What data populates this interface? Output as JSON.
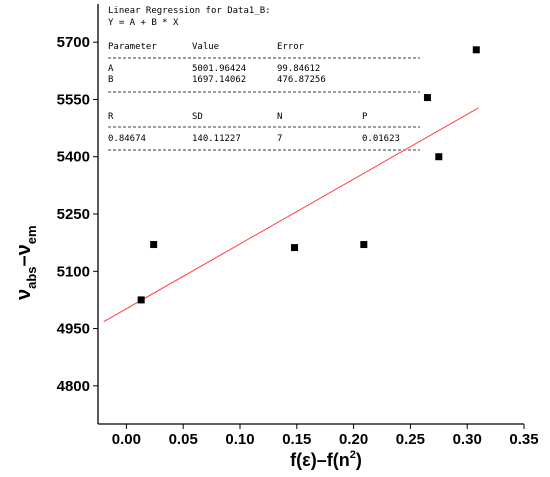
{
  "chart_data": {
    "type": "scatter",
    "title": "",
    "xlabel_main": "f(ε)–f(n",
    "xlabel_sup": "2",
    "xlabel_tail": ")",
    "ylabel_nu1": "ν",
    "ylabel_sub1": "abs",
    "ylabel_dash": "–ν",
    "ylabel_sub2": "em",
    "xlim": [
      -0.025,
      0.35
    ],
    "ylim": [
      4700,
      5800
    ],
    "x_ticks": [
      0.0,
      0.05,
      0.1,
      0.15,
      0.2,
      0.25,
      0.3,
      0.35
    ],
    "x_tick_labels": [
      "0.00",
      "0.05",
      "0.10",
      "0.15",
      "0.20",
      "0.25",
      "0.30",
      "0.35"
    ],
    "y_ticks": [
      4800,
      4950,
      5100,
      5250,
      5400,
      5550,
      5700
    ],
    "y_tick_labels": [
      "4800",
      "4950",
      "5100",
      "5250",
      "5400",
      "5550",
      "5700"
    ],
    "grid": false,
    "series": [
      {
        "points": [
          {
            "x": 0.013,
            "y": 5025
          },
          {
            "x": 0.024,
            "y": 5170
          },
          {
            "x": 0.148,
            "y": 5162
          },
          {
            "x": 0.209,
            "y": 5170
          },
          {
            "x": 0.265,
            "y": 5555
          },
          {
            "x": 0.275,
            "y": 5400
          },
          {
            "x": 0.308,
            "y": 5680
          }
        ],
        "color": "#000000"
      }
    ],
    "fit_line": {
      "intercept": 5001.96424,
      "slope": 1697.14062,
      "x_range": [
        -0.02,
        0.31
      ],
      "color": "#ff4040"
    }
  },
  "stats_box": {
    "title": "Linear Regression for Data1_B:",
    "equation": "Y = A + B * X",
    "params_header": [
      "Parameter",
      "Value",
      "Error"
    ],
    "params_rows": [
      [
        "A",
        "5001.96424",
        "99.84612"
      ],
      [
        "B",
        "1697.14062",
        "476.87256"
      ]
    ],
    "stats_header": [
      "R",
      "SD",
      "N",
      "P"
    ],
    "stats_row": [
      "0.84674",
      "140.11227",
      "7",
      "0.01623"
    ]
  }
}
